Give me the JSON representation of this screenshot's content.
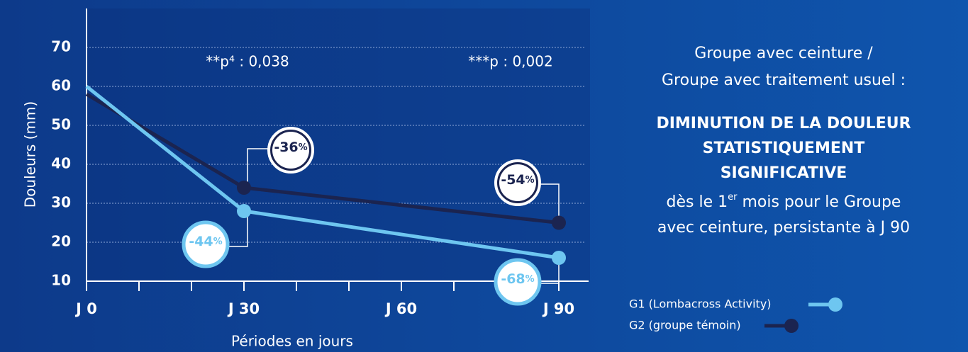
{
  "chart_data": {
    "type": "line",
    "x": [
      0,
      30,
      90
    ],
    "xlim": [
      0,
      95
    ],
    "xticks": [
      {
        "value": 0,
        "label": "J 0"
      },
      {
        "value": 30,
        "label": "J 30"
      },
      {
        "value": 60,
        "label": "J 60"
      },
      {
        "value": 90,
        "label": "J 90"
      }
    ],
    "xminorticks": [
      10,
      20,
      40,
      50,
      70,
      80
    ],
    "ylim": [
      10,
      80
    ],
    "yticks": [
      10,
      20,
      30,
      40,
      50,
      60,
      70
    ],
    "grid": true,
    "x_label": "Périodes en jours",
    "y_label": "Douleurs (mm)",
    "series": [
      {
        "name": "G1 (Lombacross Activity)",
        "color": "#6ec6f0",
        "values": [
          60,
          28,
          16
        ]
      },
      {
        "name": "G2 (groupe témoin)",
        "color": "#1b2450",
        "values": [
          58,
          34,
          25
        ]
      }
    ],
    "pvalues": [
      "**p⁴ : 0,038",
      "***p : 0,002"
    ],
    "badges": [
      {
        "text": "-36",
        "unit": "%",
        "stars": "**"
      },
      {
        "text": "-54",
        "unit": "%",
        "stars": "***"
      },
      {
        "text": "-44",
        "unit": "%",
        "stars": "**"
      },
      {
        "text": "-68",
        "unit": "%",
        "stars": "***"
      }
    ]
  },
  "panel": {
    "intro": [
      "Groupe avec ceinture /",
      "Groupe avec traitement usuel :"
    ],
    "heading": [
      "DIMINUTION DE LA DOULEUR",
      "STATISTIQUEMENT",
      "SIGNIFICATIVE"
    ],
    "body_start": "dès le 1",
    "body_sup": "er",
    "body_rest": " mois pour le Groupe",
    "body_line2": "avec ceinture, persistante à J 90"
  }
}
